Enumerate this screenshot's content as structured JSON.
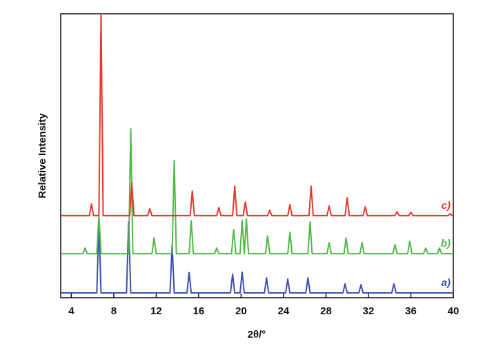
{
  "chart_data": {
    "type": "line",
    "x_label": "2θ/°",
    "y_label": "Relative Intensity",
    "xlim": [
      3,
      40
    ],
    "xticks": [
      4,
      8,
      12,
      16,
      20,
      24,
      28,
      32,
      36,
      40
    ],
    "ylim": [
      0,
      100
    ],
    "grid": false,
    "series": [
      {
        "name": "a)",
        "color": "#3a4fae",
        "x": [
          3,
          6.4,
          6.6,
          6.8,
          9.2,
          9.4,
          9.6,
          13.3,
          13.5,
          13.7,
          14.9,
          15.1,
          15.3,
          19.0,
          19.2,
          19.4,
          19.9,
          20.1,
          20.3,
          22.2,
          22.4,
          22.6,
          24.2,
          24.4,
          24.6,
          26.1,
          26.3,
          26.5,
          29.6,
          29.8,
          30.0,
          31.1,
          31.3,
          31.5,
          34.2,
          34.4,
          34.6,
          40
        ],
        "values": [
          1.7,
          1.7,
          26.7,
          1.7,
          1.7,
          26.7,
          1.7,
          1.7,
          18.7,
          1.7,
          1.7,
          8.9,
          1.7,
          1.7,
          8.3,
          1.7,
          1.7,
          9.0,
          1.7,
          1.7,
          7.0,
          1.7,
          1.7,
          6.6,
          1.7,
          1.7,
          7.0,
          1.7,
          1.7,
          4.9,
          1.7,
          1.7,
          4.6,
          1.7,
          1.7,
          4.9,
          1.7,
          1.7
        ]
      },
      {
        "name": "b)",
        "color": "#4fb848",
        "x": [
          3,
          5.1,
          5.3,
          5.5,
          6.4,
          6.6,
          6.8,
          9.4,
          9.6,
          9.8,
          11.6,
          11.8,
          12.0,
          13.5,
          13.7,
          13.9,
          15.1,
          15.3,
          15.5,
          17.5,
          17.7,
          17.9,
          19.1,
          19.3,
          19.5,
          19.9,
          20.1,
          20.3,
          20.3,
          20.5,
          20.7,
          22.3,
          22.5,
          22.7,
          24.4,
          24.6,
          24.8,
          26.3,
          26.5,
          26.7,
          28.1,
          28.3,
          28.5,
          29.7,
          29.9,
          30.1,
          31.2,
          31.4,
          31.6,
          34.3,
          34.5,
          34.7,
          35.7,
          35.9,
          36.1,
          37.2,
          37.4,
          37.6,
          38.5,
          38.7,
          38.9,
          40
        ],
        "values": [
          15.5,
          15.5,
          17.5,
          15.5,
          15.5,
          28.9,
          15.5,
          15.5,
          59.5,
          15.5,
          15.5,
          21.1,
          15.5,
          15.5,
          48.3,
          15.5,
          15.5,
          27.2,
          15.5,
          15.5,
          17.5,
          15.5,
          15.5,
          24.0,
          15.5,
          15.5,
          27.2,
          15.5,
          15.5,
          27.7,
          15.5,
          15.5,
          21.8,
          15.5,
          15.5,
          23.1,
          15.5,
          15.5,
          26.7,
          15.5,
          15.5,
          19.4,
          15.5,
          15.5,
          21.1,
          15.5,
          15.5,
          19.4,
          15.5,
          15.5,
          18.7,
          15.5,
          15.5,
          19.9,
          15.5,
          15.5,
          17.5,
          15.5,
          15.5,
          17.5,
          15.5,
          15.5
        ]
      },
      {
        "name": "c)",
        "color": "#e8352b",
        "x": [
          3,
          5.7,
          5.9,
          6.1,
          6.6,
          6.8,
          7.0,
          9.5,
          9.7,
          9.9,
          11.2,
          11.4,
          11.6,
          15.2,
          15.4,
          15.6,
          17.7,
          17.9,
          18.1,
          19.2,
          19.4,
          19.6,
          20.2,
          20.4,
          20.6,
          22.5,
          22.7,
          22.9,
          24.4,
          24.6,
          24.8,
          26.4,
          26.6,
          26.8,
          28.1,
          28.3,
          28.5,
          29.8,
          30.0,
          30.2,
          31.5,
          31.7,
          31.9,
          34.5,
          34.7,
          34.9,
          35.8,
          36.0,
          36.2,
          39.5,
          39.7,
          39.9,
          40
        ],
        "values": [
          28.9,
          28.9,
          33.0,
          28.9,
          28.9,
          100,
          28.9,
          28.9,
          40.5,
          28.9,
          28.9,
          31.3,
          28.9,
          28.9,
          37.6,
          28.9,
          28.9,
          31.8,
          28.9,
          28.9,
          39.3,
          28.9,
          28.9,
          33.7,
          28.9,
          28.9,
          30.8,
          28.9,
          28.9,
          32.8,
          28.9,
          28.9,
          39.3,
          28.9,
          28.9,
          32.3,
          28.9,
          28.9,
          35.2,
          28.9,
          28.9,
          32.0,
          28.9,
          28.9,
          30.3,
          28.9,
          28.9,
          30.1,
          28.9,
          28.9,
          29.6,
          28.9,
          28.9
        ]
      }
    ]
  }
}
